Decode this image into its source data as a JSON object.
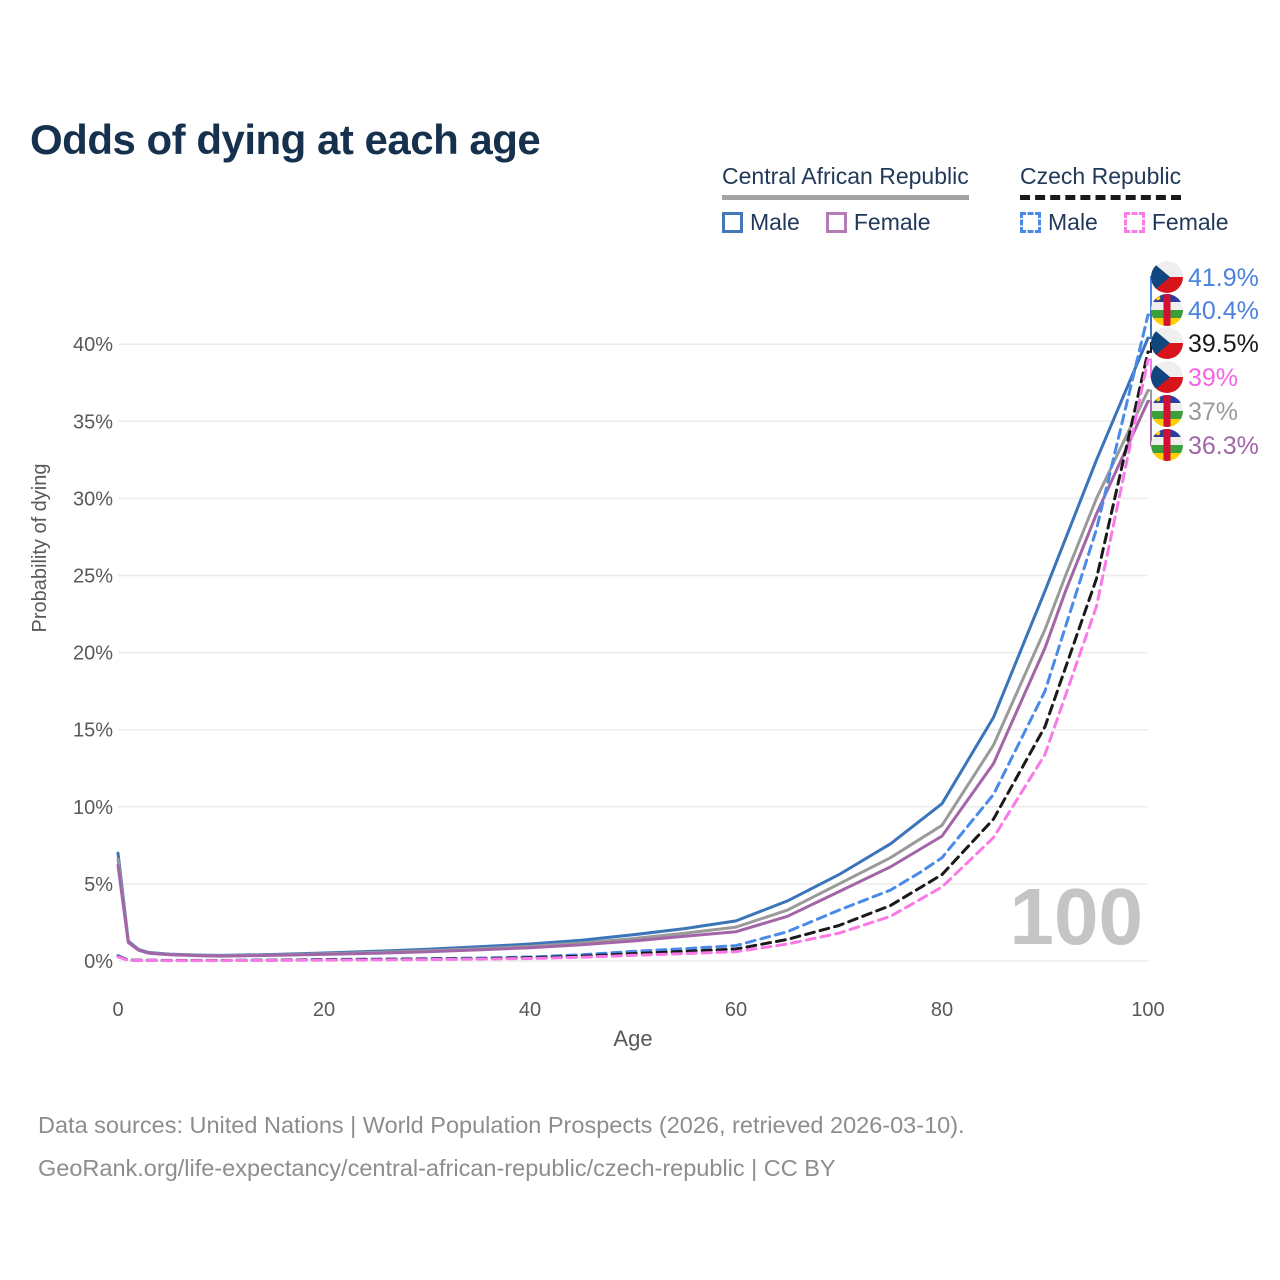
{
  "header": {
    "title": "Odds of dying at each age"
  },
  "legend": {
    "groups": [
      {
        "label": "Central African Republic",
        "line_style": "solid",
        "underline_color": "#a3a3a3",
        "items": [
          {
            "label": "Male",
            "color": "#4477b6",
            "line_style": "solid"
          },
          {
            "label": "Female",
            "color": "#b37cb6",
            "line_style": "solid"
          }
        ]
      },
      {
        "label": "Czech Republic",
        "line_style": "dashed",
        "underline_color": "#1a1a1a",
        "items": [
          {
            "label": "Male",
            "color": "#4a8bea",
            "line_style": "dashed"
          },
          {
            "label": "Female",
            "color": "#fb7ce8",
            "line_style": "dashed"
          }
        ]
      }
    ]
  },
  "colors": {
    "grid": "#ececec",
    "axis_text": "#595959",
    "watermark": "#c5c5c5",
    "title_text": "#16314e",
    "footer_text": "#8d8d8d"
  },
  "chart_data": {
    "type": "line",
    "title": "Odds of dying at each age",
    "xlabel": "Age",
    "ylabel": "Probability of dying",
    "xlim": [
      0,
      100
    ],
    "ylim": [
      0,
      44
    ],
    "grid": "horizontal-only",
    "legend_position": "top-right",
    "watermark": "100",
    "x_ticks": [
      {
        "value": 0,
        "label": "0"
      },
      {
        "value": 20,
        "label": "20"
      },
      {
        "value": 40,
        "label": "40"
      },
      {
        "value": 60,
        "label": "60"
      },
      {
        "value": 80,
        "label": "80"
      },
      {
        "value": 100,
        "label": "100"
      }
    ],
    "y_ticks": [
      {
        "value": 0,
        "label": "0%"
      },
      {
        "value": 5,
        "label": "5%"
      },
      {
        "value": 10,
        "label": "10%"
      },
      {
        "value": 15,
        "label": "15%"
      },
      {
        "value": 20,
        "label": "20%"
      },
      {
        "value": 25,
        "label": "25%"
      },
      {
        "value": 30,
        "label": "30%"
      },
      {
        "value": 35,
        "label": "35%"
      },
      {
        "value": 40,
        "label": "40%"
      }
    ],
    "series": [
      {
        "id": "car-male",
        "country": "Central African Republic",
        "sex": "Male",
        "line_style": "solid",
        "color": "#3b74b9",
        "label_color": "#4a82dd",
        "flag_icon": "car-flag-icon",
        "end_label": "40.4%",
        "end_value": 40.4,
        "points": [
          [
            0,
            7.0
          ],
          [
            1,
            1.3
          ],
          [
            2,
            0.75
          ],
          [
            3,
            0.55
          ],
          [
            5,
            0.45
          ],
          [
            8,
            0.38
          ],
          [
            10,
            0.36
          ],
          [
            15,
            0.42
          ],
          [
            20,
            0.52
          ],
          [
            25,
            0.63
          ],
          [
            30,
            0.76
          ],
          [
            35,
            0.92
          ],
          [
            40,
            1.1
          ],
          [
            45,
            1.35
          ],
          [
            50,
            1.7
          ],
          [
            55,
            2.1
          ],
          [
            60,
            2.6
          ],
          [
            65,
            3.9
          ],
          [
            70,
            5.6
          ],
          [
            75,
            7.6
          ],
          [
            80,
            10.2
          ],
          [
            85,
            15.8
          ],
          [
            90,
            24.0
          ],
          [
            95,
            32.5
          ],
          [
            100,
            40.4
          ]
        ]
      },
      {
        "id": "car-total",
        "country": "Central African Republic",
        "sex": "Both",
        "line_style": "solid",
        "color": "#9a9a9a",
        "label_color": "#9a9a9a",
        "flag_icon": "car-flag-icon",
        "end_label": "37%",
        "end_value": 37.0,
        "points": [
          [
            0,
            6.6
          ],
          [
            1,
            1.25
          ],
          [
            2,
            0.72
          ],
          [
            3,
            0.52
          ],
          [
            5,
            0.43
          ],
          [
            8,
            0.36
          ],
          [
            10,
            0.34
          ],
          [
            15,
            0.39
          ],
          [
            20,
            0.47
          ],
          [
            25,
            0.56
          ],
          [
            30,
            0.67
          ],
          [
            35,
            0.8
          ],
          [
            40,
            0.95
          ],
          [
            45,
            1.17
          ],
          [
            50,
            1.45
          ],
          [
            55,
            1.8
          ],
          [
            60,
            2.2
          ],
          [
            65,
            3.3
          ],
          [
            70,
            5.0
          ],
          [
            75,
            6.7
          ],
          [
            80,
            8.8
          ],
          [
            85,
            14.0
          ],
          [
            90,
            21.5
          ],
          [
            92,
            25.0
          ],
          [
            95,
            30.0
          ],
          [
            100,
            37.0
          ]
        ]
      },
      {
        "id": "car-female",
        "country": "Central African Republic",
        "sex": "Female",
        "line_style": "solid",
        "color": "#a266a8",
        "label_color": "#a266a8",
        "flag_icon": "car-flag-icon",
        "end_label": "36.3%",
        "end_value": 36.3,
        "points": [
          [
            0,
            6.2
          ],
          [
            1,
            1.2
          ],
          [
            2,
            0.7
          ],
          [
            3,
            0.5
          ],
          [
            5,
            0.41
          ],
          [
            8,
            0.34
          ],
          [
            10,
            0.32
          ],
          [
            15,
            0.36
          ],
          [
            20,
            0.43
          ],
          [
            25,
            0.5
          ],
          [
            30,
            0.6
          ],
          [
            35,
            0.72
          ],
          [
            40,
            0.86
          ],
          [
            45,
            1.05
          ],
          [
            50,
            1.3
          ],
          [
            55,
            1.6
          ],
          [
            60,
            1.9
          ],
          [
            65,
            2.9
          ],
          [
            70,
            4.5
          ],
          [
            75,
            6.1
          ],
          [
            80,
            8.1
          ],
          [
            85,
            12.8
          ],
          [
            90,
            20.3
          ],
          [
            92,
            24.0
          ],
          [
            95,
            29.0
          ],
          [
            100,
            36.3
          ]
        ]
      },
      {
        "id": "cz-male",
        "country": "Czech Republic",
        "sex": "Male",
        "line_style": "dashed",
        "color": "#4a8bea",
        "label_color": "#4a82dd",
        "flag_icon": "czech-flag-icon",
        "end_label": "41.9%",
        "end_value": 41.9,
        "points": [
          [
            0,
            0.35
          ],
          [
            1,
            0.06
          ],
          [
            5,
            0.04
          ],
          [
            10,
            0.04
          ],
          [
            15,
            0.06
          ],
          [
            20,
            0.1
          ],
          [
            25,
            0.12
          ],
          [
            30,
            0.15
          ],
          [
            35,
            0.19
          ],
          [
            40,
            0.26
          ],
          [
            45,
            0.4
          ],
          [
            50,
            0.62
          ],
          [
            55,
            0.8
          ],
          [
            60,
            1.0
          ],
          [
            65,
            1.9
          ],
          [
            70,
            3.3
          ],
          [
            75,
            4.6
          ],
          [
            78,
            5.8
          ],
          [
            80,
            6.7
          ],
          [
            85,
            10.8
          ],
          [
            90,
            17.5
          ],
          [
            95,
            28.0
          ],
          [
            100,
            41.9
          ]
        ]
      },
      {
        "id": "cz-total",
        "country": "Czech Republic",
        "sex": "Both",
        "line_style": "dashed",
        "color": "#1a1a1a",
        "label_color": "#1a1a1a",
        "flag_icon": "czech-flag-icon",
        "end_label": "39.5%",
        "end_value": 39.5,
        "points": [
          [
            0,
            0.3
          ],
          [
            1,
            0.05
          ],
          [
            5,
            0.03
          ],
          [
            10,
            0.03
          ],
          [
            15,
            0.05
          ],
          [
            20,
            0.08
          ],
          [
            25,
            0.1
          ],
          [
            30,
            0.12
          ],
          [
            35,
            0.15
          ],
          [
            40,
            0.21
          ],
          [
            45,
            0.31
          ],
          [
            50,
            0.48
          ],
          [
            55,
            0.62
          ],
          [
            60,
            0.78
          ],
          [
            65,
            1.4
          ],
          [
            70,
            2.3
          ],
          [
            75,
            3.6
          ],
          [
            80,
            5.6
          ],
          [
            85,
            9.2
          ],
          [
            90,
            15.2
          ],
          [
            95,
            24.8
          ],
          [
            100,
            39.5
          ]
        ]
      },
      {
        "id": "cz-female",
        "country": "Czech Republic",
        "sex": "Female",
        "line_style": "dashed",
        "color": "#f97ae6",
        "label_color": "#f463e6",
        "flag_icon": "czech-flag-icon",
        "end_label": "39%",
        "end_value": 39.0,
        "points": [
          [
            0,
            0.27
          ],
          [
            1,
            0.04
          ],
          [
            5,
            0.025
          ],
          [
            10,
            0.025
          ],
          [
            15,
            0.04
          ],
          [
            20,
            0.05
          ],
          [
            25,
            0.07
          ],
          [
            30,
            0.09
          ],
          [
            35,
            0.12
          ],
          [
            40,
            0.16
          ],
          [
            45,
            0.24
          ],
          [
            50,
            0.37
          ],
          [
            55,
            0.48
          ],
          [
            60,
            0.6
          ],
          [
            65,
            1.1
          ],
          [
            70,
            1.8
          ],
          [
            75,
            2.9
          ],
          [
            80,
            4.8
          ],
          [
            85,
            8.0
          ],
          [
            90,
            13.4
          ],
          [
            95,
            23.0
          ],
          [
            100,
            39.0
          ]
        ]
      }
    ]
  },
  "axes": {
    "y_title": "Probability of dying",
    "x_title": "Age"
  },
  "footer": {
    "line1": "Data sources: United Nations | World Population Prospects (2026, retrieved 2026-03-10).",
    "line2": "GeoRank.org/life-expectancy/central-african-republic/czech-republic | CC BY"
  }
}
